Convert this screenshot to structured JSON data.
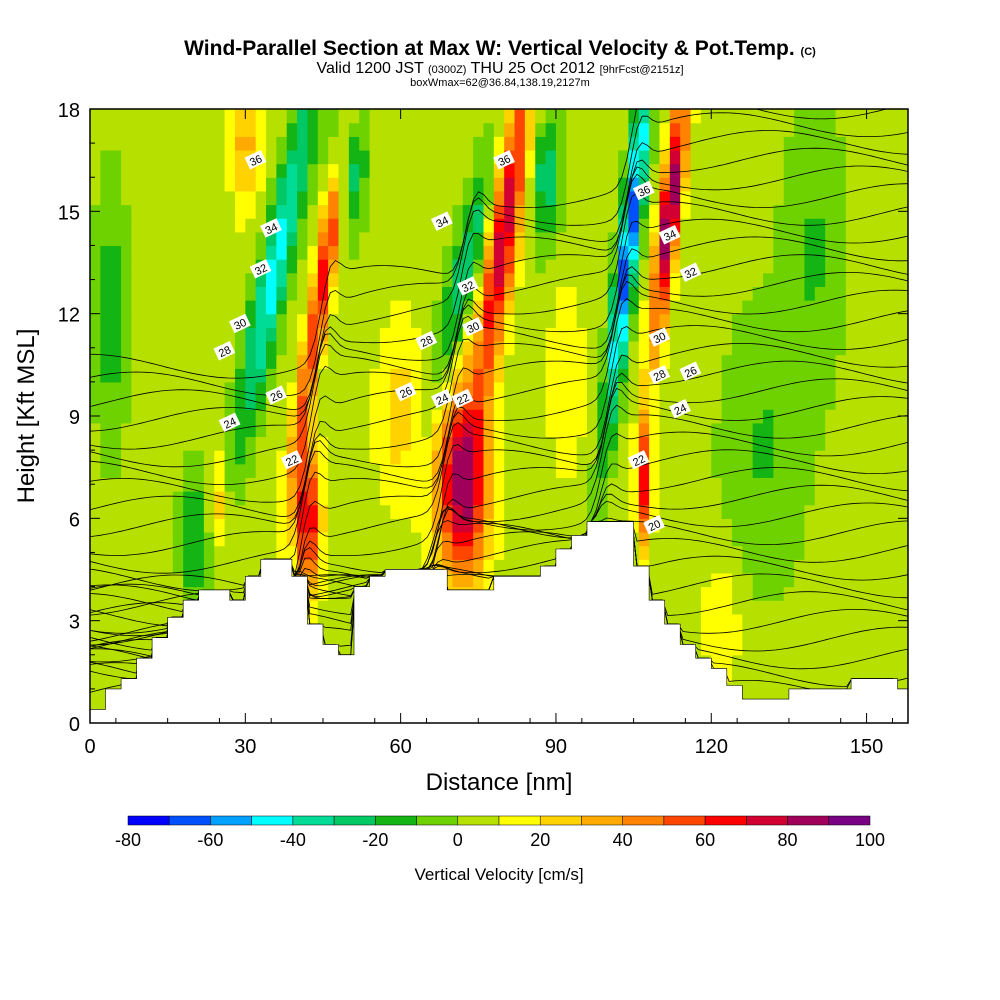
{
  "header": {
    "title_main": "Wind-Parallel Section at Max W: Vertical Velocity & Pot.Temp.",
    "title_mark": "(C)",
    "valid_prefix": "Valid 1200 JST",
    "valid_utc": "(0300Z)",
    "valid_date": "THU 25 Oct 2012",
    "valid_fcst": "[9hrFcst@2151z]",
    "box_info": "boxWmax=62@36.84,138.19,2127m"
  },
  "colors": {
    "terrain": "#ffffff",
    "background_field": "#b6e000",
    "contour": "#000000"
  },
  "chart_data": {
    "type": "heatmap",
    "xlabel": "Distance [nm]",
    "ylabel": "Height [Kft MSL]",
    "xlim": [
      0,
      158
    ],
    "ylim": [
      0,
      18
    ],
    "xticks": [
      "0",
      "30",
      "60",
      "90",
      "120",
      "150"
    ],
    "xtick_values": [
      0,
      30,
      60,
      90,
      120,
      150
    ],
    "yticks": [
      "0",
      "3",
      "6",
      "9",
      "12",
      "15",
      "18"
    ],
    "ytick_values": [
      0,
      3,
      6,
      9,
      12,
      15,
      18
    ],
    "colorbar": {
      "label": "Vertical Velocity [cm/s]",
      "ticks": [
        "-80",
        "-60",
        "-40",
        "-20",
        "0",
        "20",
        "40",
        "60",
        "80",
        "100"
      ],
      "tick_values": [
        -80,
        -60,
        -40,
        -20,
        0,
        20,
        40,
        60,
        80,
        100
      ],
      "levels": [
        -80,
        -70,
        -60,
        -50,
        -40,
        -30,
        -20,
        -10,
        0,
        10,
        20,
        30,
        40,
        50,
        60,
        70,
        80,
        90,
        100
      ],
      "colors": [
        "#0000ff",
        "#0050ff",
        "#00a0ff",
        "#00ffff",
        "#00dc96",
        "#00c864",
        "#14b414",
        "#6ed200",
        "#b6e000",
        "#ffff00",
        "#ffd200",
        "#ffaa00",
        "#ff8200",
        "#ff4600",
        "#ff0000",
        "#d20032",
        "#a0005a",
        "#780082"
      ]
    },
    "terrain": {
      "distance_nm": [
        0,
        3,
        3,
        6,
        6,
        9,
        9,
        12,
        12,
        15,
        15,
        18,
        18,
        21,
        21,
        24,
        24,
        27,
        27,
        30,
        30,
        33,
        33,
        39,
        39,
        42,
        42,
        45,
        45,
        48,
        48,
        51,
        51,
        54,
        54,
        57,
        57,
        60,
        60,
        69,
        69,
        78,
        78,
        84,
        84,
        87,
        87,
        90,
        90,
        93,
        93,
        96,
        96,
        99,
        99,
        105,
        105,
        108,
        108,
        111,
        111,
        114,
        114,
        117,
        117,
        120,
        120,
        123,
        123,
        126,
        126,
        135,
        135,
        147,
        147,
        156,
        156,
        158
      ],
      "height_kft": [
        0.4,
        0.4,
        1.0,
        1.0,
        1.3,
        1.3,
        1.9,
        1.9,
        2.5,
        2.5,
        3.1,
        3.1,
        3.6,
        3.6,
        3.9,
        3.9,
        3.9,
        3.9,
        3.6,
        3.6,
        4.3,
        4.3,
        4.8,
        4.8,
        4.3,
        4.3,
        2.9,
        2.9,
        2.3,
        2.3,
        2.0,
        2.0,
        4.0,
        4.0,
        4.3,
        4.3,
        4.5,
        4.5,
        4.5,
        4.5,
        3.9,
        3.9,
        4.3,
        4.3,
        4.3,
        4.3,
        4.6,
        4.6,
        5.1,
        5.1,
        5.5,
        5.5,
        5.9,
        5.9,
        5.9,
        5.9,
        4.6,
        4.6,
        3.6,
        3.6,
        2.9,
        2.9,
        2.3,
        2.3,
        1.9,
        1.9,
        1.6,
        1.6,
        1.1,
        1.1,
        0.7,
        0.7,
        1.0,
        1.0,
        1.3,
        1.3,
        1.0,
        1.0
      ]
    },
    "w_features": [
      {
        "x": 36,
        "y": 13.5,
        "w": -50,
        "rx": 3,
        "ry": 5.5,
        "tilt": 0.45
      },
      {
        "x": 42,
        "y": 6,
        "w": 70,
        "rx": 2.5,
        "ry": 2.2,
        "tilt": 0
      },
      {
        "x": 45,
        "y": 13,
        "w": 60,
        "rx": 2,
        "ry": 6,
        "tilt": 0.35
      },
      {
        "x": 50,
        "y": 16.5,
        "w": -40,
        "rx": 3,
        "ry": 2,
        "tilt": 0
      },
      {
        "x": 72,
        "y": 7,
        "w": 80,
        "rx": 5,
        "ry": 3,
        "tilt": 0
      },
      {
        "x": 72,
        "y": 13,
        "w": -35,
        "rx": 3,
        "ry": 4,
        "tilt": 0.5
      },
      {
        "x": 80,
        "y": 14.5,
        "w": 75,
        "rx": 3,
        "ry": 5,
        "tilt": 0.3
      },
      {
        "x": 88,
        "y": 16,
        "w": -30,
        "rx": 3,
        "ry": 2,
        "tilt": 0
      },
      {
        "x": 104,
        "y": 14,
        "w": -70,
        "rx": 2,
        "ry": 5.5,
        "tilt": 0.25
      },
      {
        "x": 107,
        "y": 7,
        "w": 60,
        "rx": 1.5,
        "ry": 2,
        "tilt": 0
      },
      {
        "x": 112,
        "y": 15,
        "w": 90,
        "rx": 2,
        "ry": 4,
        "tilt": 0.25
      },
      {
        "x": 30,
        "y": 17,
        "w": 30,
        "rx": 3,
        "ry": 2,
        "tilt": 0
      },
      {
        "x": 25,
        "y": 6.5,
        "w": 25,
        "rx": 2,
        "ry": 1.5,
        "tilt": 0
      },
      {
        "x": 20,
        "y": 5.5,
        "w": -25,
        "rx": 2.5,
        "ry": 2,
        "tilt": 0
      },
      {
        "x": 4,
        "y": 12,
        "w": -20,
        "rx": 3,
        "ry": 4,
        "tilt": 0
      },
      {
        "x": 60,
        "y": 9,
        "w": 20,
        "rx": 5,
        "ry": 3,
        "tilt": 0
      },
      {
        "x": 92,
        "y": 10,
        "w": 15,
        "rx": 4,
        "ry": 3,
        "tilt": 0
      },
      {
        "x": 130,
        "y": 8,
        "w": -15,
        "rx": 8,
        "ry": 4,
        "tilt": 0
      },
      {
        "x": 140,
        "y": 14,
        "w": -15,
        "rx": 6,
        "ry": 4,
        "tilt": 0
      },
      {
        "x": 122,
        "y": 3,
        "w": 15,
        "rx": 4,
        "ry": 2,
        "tilt": 0
      }
    ],
    "theta_labels": [
      {
        "text": "36",
        "x": 32,
        "y": 16.5
      },
      {
        "text": "34",
        "x": 35,
        "y": 14.5
      },
      {
        "text": "32",
        "x": 33,
        "y": 13.3
      },
      {
        "text": "30",
        "x": 29,
        "y": 11.7
      },
      {
        "text": "28",
        "x": 26,
        "y": 10.9
      },
      {
        "text": "26",
        "x": 36,
        "y": 9.6
      },
      {
        "text": "24",
        "x": 27,
        "y": 8.8
      },
      {
        "text": "22",
        "x": 39,
        "y": 7.7
      },
      {
        "text": "26",
        "x": 61,
        "y": 9.7
      },
      {
        "text": "28",
        "x": 65,
        "y": 11.2
      },
      {
        "text": "24",
        "x": 68,
        "y": 9.5
      },
      {
        "text": "22",
        "x": 72,
        "y": 9.5
      },
      {
        "text": "34",
        "x": 68,
        "y": 14.7
      },
      {
        "text": "32",
        "x": 73,
        "y": 12.8
      },
      {
        "text": "30",
        "x": 74,
        "y": 11.6
      },
      {
        "text": "36",
        "x": 80,
        "y": 16.5
      },
      {
        "text": "36",
        "x": 107,
        "y": 15.6
      },
      {
        "text": "34",
        "x": 112,
        "y": 14.3
      },
      {
        "text": "32",
        "x": 116,
        "y": 13.2
      },
      {
        "text": "30",
        "x": 110,
        "y": 11.3
      },
      {
        "text": "28",
        "x": 110,
        "y": 10.2
      },
      {
        "text": "26",
        "x": 116,
        "y": 10.3
      },
      {
        "text": "24",
        "x": 114,
        "y": 9.2
      },
      {
        "text": "22",
        "x": 106,
        "y": 7.7
      },
      {
        "text": "20",
        "x": 109,
        "y": 5.8
      }
    ]
  }
}
